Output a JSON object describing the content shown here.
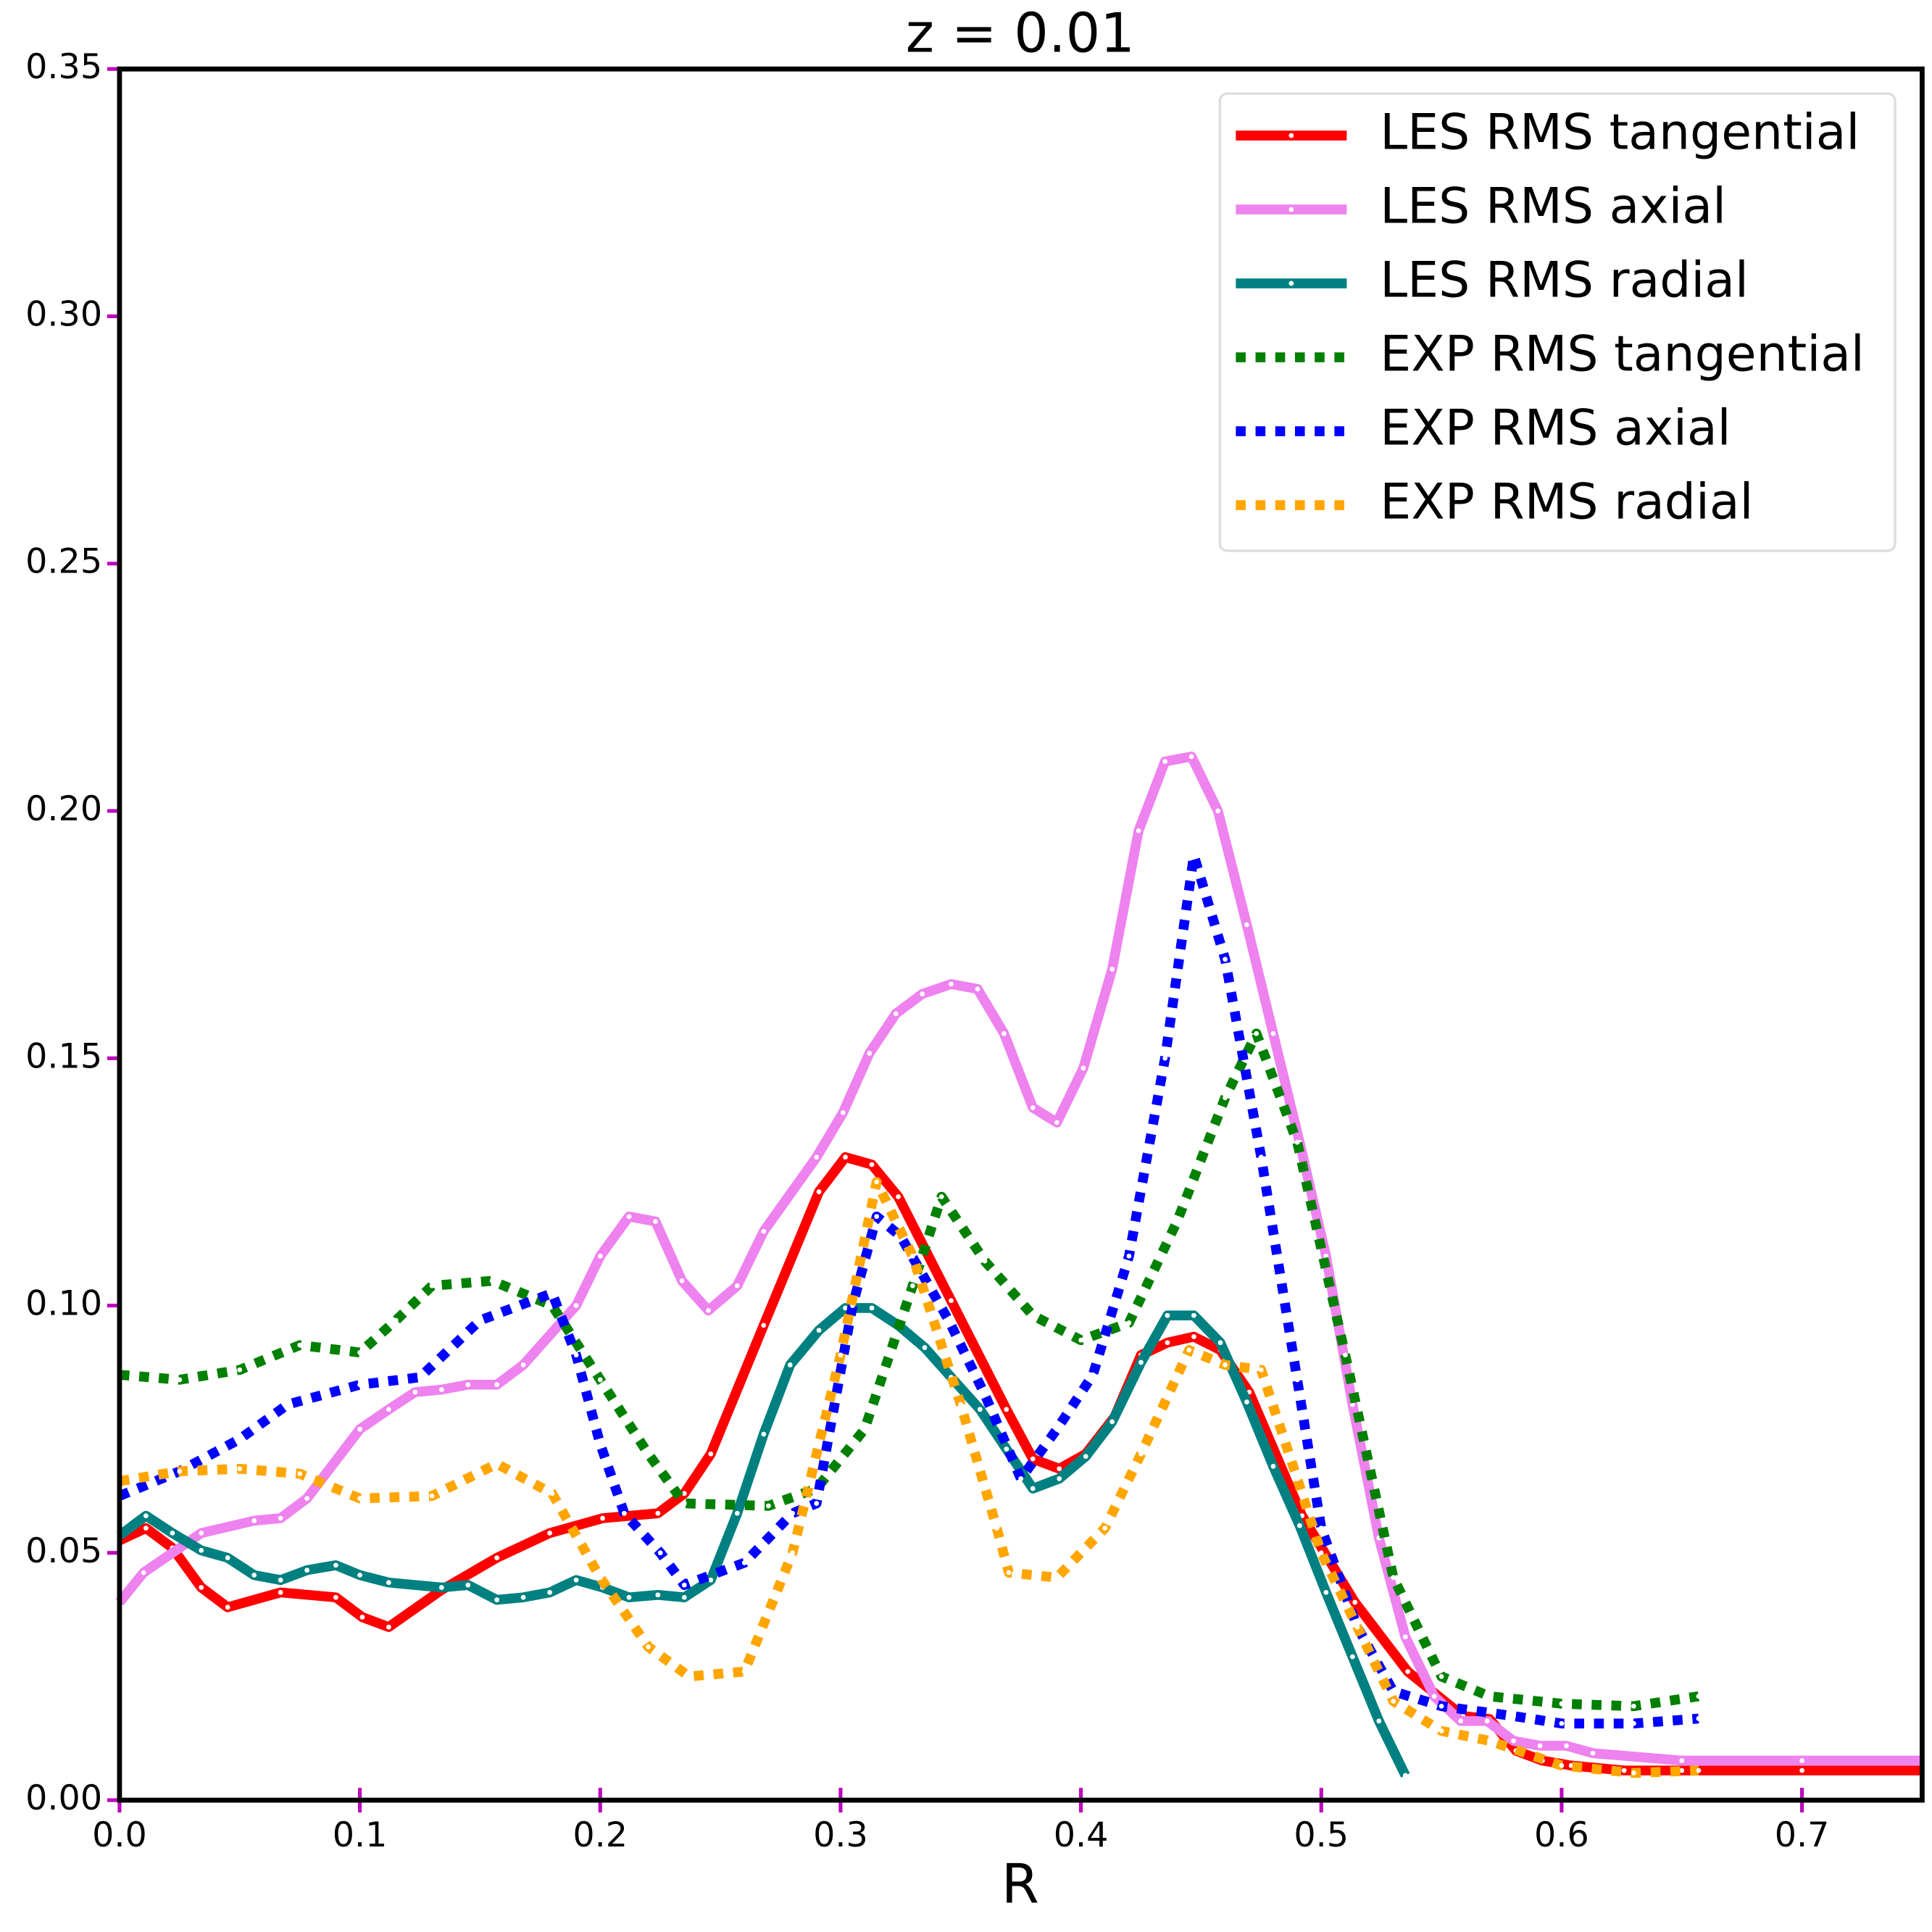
{
  "chart_data": {
    "type": "line",
    "title": "z = 0.01",
    "x_label": "R",
    "xlim": [
      0,
      0.75
    ],
    "ylim": [
      0,
      0.35
    ],
    "xticks": [
      {
        "value": 0,
        "label": "0.0"
      },
      {
        "value": 0.1,
        "label": "0.1"
      },
      {
        "value": 0.2,
        "label": "0.2"
      },
      {
        "value": 0.3,
        "label": "0.3"
      },
      {
        "value": 0.4,
        "label": "0.4"
      },
      {
        "value": 0.5,
        "label": "0.5"
      },
      {
        "value": 0.6,
        "label": "0.6"
      },
      {
        "value": 0.7,
        "label": "0.7"
      }
    ],
    "yticks": [
      {
        "value": 0,
        "label": "0.00"
      },
      {
        "value": 0.05,
        "label": "0.05"
      },
      {
        "value": 0.1,
        "label": "0.10"
      },
      {
        "value": 0.15,
        "label": "0.15"
      },
      {
        "value": 0.2,
        "label": "0.20"
      },
      {
        "value": 0.25,
        "label": "0.25"
      },
      {
        "value": 0.3,
        "label": "0.30"
      },
      {
        "value": 0.35,
        "label": "0.35"
      }
    ],
    "legend": "upper right",
    "grid": false,
    "series": [
      {
        "name": "LES RMS tangential",
        "color": "#ff0000",
        "style": "solid",
        "x": [
          0,
          0.011,
          0.022,
          0.034,
          0.045,
          0.067,
          0.09,
          0.101,
          0.112,
          0.134,
          0.157,
          0.179,
          0.201,
          0.224,
          0.235,
          0.246,
          0.268,
          0.291,
          0.302,
          0.313,
          0.324,
          0.346,
          0.369,
          0.38,
          0.391,
          0.402,
          0.414,
          0.425,
          0.436,
          0.447,
          0.458,
          0.47,
          0.492,
          0.514,
          0.536,
          0.559,
          0.57,
          0.581,
          0.592,
          0.604,
          0.626,
          0.65,
          0.7,
          0.75
        ],
        "values": [
          0.0525,
          0.055,
          0.051,
          0.043,
          0.039,
          0.042,
          0.041,
          0.037,
          0.035,
          0.0425,
          0.049,
          0.054,
          0.057,
          0.058,
          0.062,
          0.07,
          0.096,
          0.123,
          0.13,
          0.1285,
          0.122,
          0.101,
          0.079,
          0.069,
          0.067,
          0.07,
          0.0775,
          0.09,
          0.0925,
          0.0937,
          0.091,
          0.0825,
          0.0575,
          0.04,
          0.026,
          0.017,
          0.0164,
          0.01,
          0.008,
          0.007,
          0.006,
          0.006,
          0.006,
          0.006
        ]
      },
      {
        "name": "LES RMS axial",
        "color": "#ee82ee",
        "style": "solid",
        "x": [
          0,
          0.01,
          0.034,
          0.056,
          0.067,
          0.078,
          0.1,
          0.112,
          0.123,
          0.134,
          0.145,
          0.157,
          0.168,
          0.19,
          0.2,
          0.212,
          0.223,
          0.234,
          0.245,
          0.257,
          0.268,
          0.29,
          0.301,
          0.312,
          0.323,
          0.334,
          0.346,
          0.357,
          0.368,
          0.38,
          0.39,
          0.401,
          0.413,
          0.424,
          0.435,
          0.446,
          0.457,
          0.469,
          0.48,
          0.491,
          0.502,
          0.513,
          0.524,
          0.535,
          0.547,
          0.558,
          0.569,
          0.58,
          0.591,
          0.602,
          0.613,
          0.65,
          0.7,
          0.75
        ],
        "values": [
          0.04,
          0.046,
          0.054,
          0.0565,
          0.057,
          0.061,
          0.075,
          0.079,
          0.0825,
          0.083,
          0.084,
          0.084,
          0.088,
          0.1,
          0.11,
          0.118,
          0.117,
          0.105,
          0.099,
          0.104,
          0.115,
          0.13,
          0.139,
          0.151,
          0.159,
          0.163,
          0.165,
          0.164,
          0.155,
          0.14,
          0.137,
          0.148,
          0.168,
          0.196,
          0.21,
          0.211,
          0.2,
          0.177,
          0.155,
          0.133,
          0.11,
          0.08,
          0.053,
          0.033,
          0.021,
          0.016,
          0.016,
          0.012,
          0.011,
          0.011,
          0.0095,
          0.008,
          0.008,
          0.008
        ]
      },
      {
        "name": "LES RMS radial",
        "color": "#008080",
        "style": "solid",
        "x": [
          0,
          0.011,
          0.022,
          0.034,
          0.045,
          0.056,
          0.067,
          0.078,
          0.09,
          0.1,
          0.112,
          0.134,
          0.145,
          0.157,
          0.168,
          0.179,
          0.19,
          0.201,
          0.212,
          0.224,
          0.235,
          0.246,
          0.257,
          0.268,
          0.279,
          0.291,
          0.302,
          0.313,
          0.324,
          0.335,
          0.346,
          0.358,
          0.369,
          0.38,
          0.391,
          0.402,
          0.413,
          0.425,
          0.436,
          0.447,
          0.458,
          0.469,
          0.48,
          0.491,
          0.502,
          0.513,
          0.524,
          0.535
        ],
        "values": [
          0.0535,
          0.0575,
          0.054,
          0.0505,
          0.049,
          0.0455,
          0.0445,
          0.0465,
          0.0475,
          0.0455,
          0.044,
          0.043,
          0.0435,
          0.0405,
          0.041,
          0.042,
          0.0445,
          0.043,
          0.041,
          0.0415,
          0.041,
          0.0445,
          0.058,
          0.074,
          0.088,
          0.095,
          0.0995,
          0.0995,
          0.096,
          0.0915,
          0.0855,
          0.079,
          0.071,
          0.063,
          0.065,
          0.0695,
          0.0765,
          0.0885,
          0.098,
          0.098,
          0.0925,
          0.0805,
          0.0675,
          0.0555,
          0.042,
          0.029,
          0.016,
          0.005
        ]
      },
      {
        "name": "EXP RMS tangential",
        "color": "#008000",
        "style": "dotted",
        "x": [
          0,
          0.025,
          0.05,
          0.075,
          0.1,
          0.115,
          0.13,
          0.155,
          0.18,
          0.2,
          0.22,
          0.235,
          0.27,
          0.29,
          0.31,
          0.33,
          0.342,
          0.36,
          0.38,
          0.4,
          0.42,
          0.44,
          0.46,
          0.473,
          0.49,
          0.51,
          0.53,
          0.55,
          0.57,
          0.6,
          0.63,
          0.657
        ],
        "values": [
          0.086,
          0.085,
          0.087,
          0.092,
          0.0905,
          0.097,
          0.104,
          0.105,
          0.1,
          0.085,
          0.07,
          0.06,
          0.0595,
          0.063,
          0.075,
          0.104,
          0.122,
          0.109,
          0.098,
          0.093,
          0.0965,
          0.117,
          0.142,
          0.155,
          0.133,
          0.09,
          0.045,
          0.025,
          0.021,
          0.0195,
          0.019,
          0.021
        ]
      },
      {
        "name": "EXP RMS axial",
        "color": "#0000ff",
        "style": "dotted",
        "x": [
          0,
          0.025,
          0.05,
          0.07,
          0.1,
          0.125,
          0.15,
          0.18,
          0.19,
          0.2,
          0.21,
          0.225,
          0.235,
          0.26,
          0.28,
          0.29,
          0.305,
          0.315,
          0.325,
          0.345,
          0.36,
          0.375,
          0.39,
          0.405,
          0.42,
          0.435,
          0.447,
          0.46,
          0.475,
          0.49,
          0.5,
          0.515,
          0.53,
          0.55,
          0.58,
          0.6,
          0.63,
          0.657
        ],
        "values": [
          0.0615,
          0.0665,
          0.073,
          0.08,
          0.084,
          0.0855,
          0.097,
          0.1025,
          0.09,
          0.072,
          0.058,
          0.05,
          0.0435,
          0.048,
          0.058,
          0.06,
          0.1,
          0.118,
          0.114,
          0.097,
          0.082,
          0.065,
          0.075,
          0.086,
          0.11,
          0.15,
          0.191,
          0.17,
          0.13,
          0.085,
          0.055,
          0.035,
          0.022,
          0.019,
          0.017,
          0.0155,
          0.0155,
          0.0165
        ]
      },
      {
        "name": "EXP RMS radial",
        "color": "#ffa500",
        "style": "dotted",
        "x": [
          0,
          0.025,
          0.05,
          0.075,
          0.1,
          0.13,
          0.157,
          0.18,
          0.2,
          0.22,
          0.237,
          0.26,
          0.28,
          0.3,
          0.315,
          0.33,
          0.35,
          0.365,
          0.37,
          0.39,
          0.41,
          0.425,
          0.445,
          0.46,
          0.475,
          0.49,
          0.5,
          0.515,
          0.53,
          0.55,
          0.57,
          0.6,
          0.63,
          0.657
        ],
        "values": [
          0.0645,
          0.0665,
          0.067,
          0.066,
          0.061,
          0.0615,
          0.068,
          0.062,
          0.045,
          0.031,
          0.025,
          0.026,
          0.05,
          0.09,
          0.125,
          0.11,
          0.08,
          0.055,
          0.046,
          0.045,
          0.055,
          0.07,
          0.091,
          0.088,
          0.087,
          0.065,
          0.05,
          0.035,
          0.02,
          0.014,
          0.012,
          0.007,
          0.0055,
          0.006
        ]
      }
    ]
  }
}
